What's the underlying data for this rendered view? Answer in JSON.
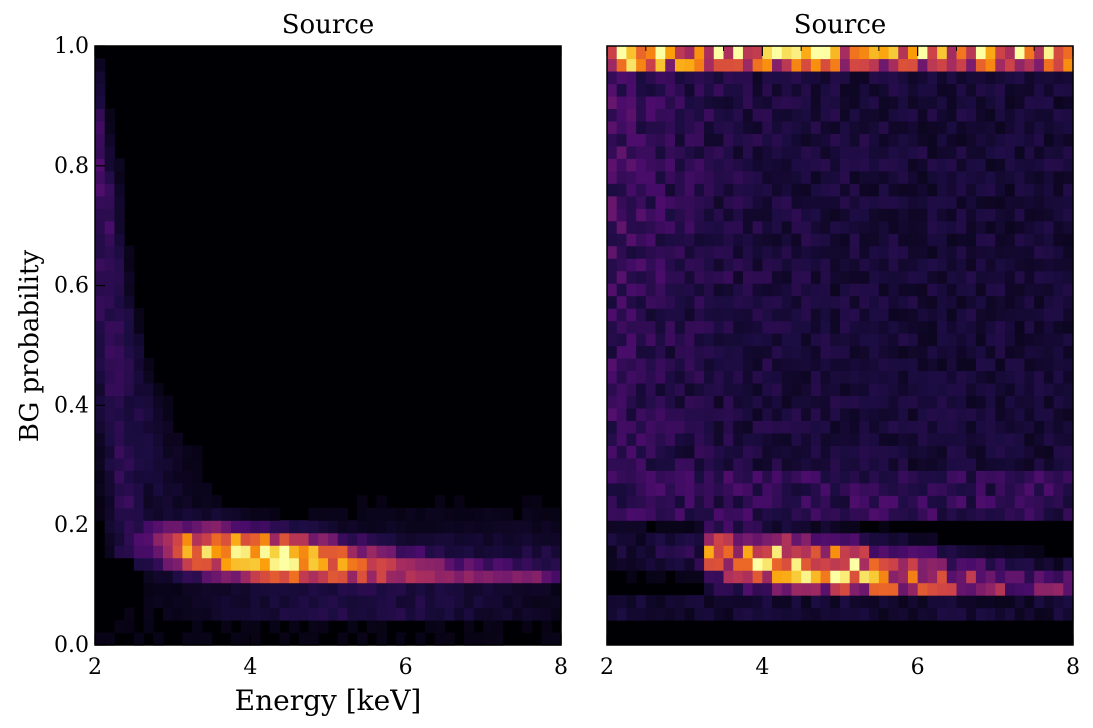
{
  "chart_data": [
    {
      "type": "heatmap",
      "title": "Source",
      "xlabel": "Energy [keV]",
      "ylabel": "BG probability",
      "xlim": [
        2,
        8
      ],
      "ylim": [
        0,
        1
      ],
      "x_ticks": [
        "2",
        "4",
        "6",
        "8"
      ],
      "y_ticks": [
        "0.0",
        "0.2",
        "0.4",
        "0.6",
        "0.8",
        "1.0"
      ],
      "colormap": "inferno",
      "colormap_stops": [
        "#000004",
        "#1b0c41",
        "#4a0c6b",
        "#781c6d",
        "#a52c60",
        "#cf4446",
        "#ed6925",
        "#fb9b06",
        "#f7d13d",
        "#fcffa4"
      ],
      "grid": false,
      "density_description": "counts concentrated near BG probability 0.10-0.17; ridge slopes down with energy"
    },
    {
      "type": "heatmap",
      "title": "Source",
      "xlabel": "",
      "ylabel": "",
      "xlim": [
        2,
        8
      ],
      "ylim": [
        0,
        1
      ],
      "x_ticks": [
        "2",
        "4",
        "6",
        "8"
      ],
      "y_ticks": [],
      "colormap": "inferno",
      "grid": false,
      "density_description": "ridge near BG probability 0.10-0.15 and bright band near 0.96-1.0"
    }
  ]
}
